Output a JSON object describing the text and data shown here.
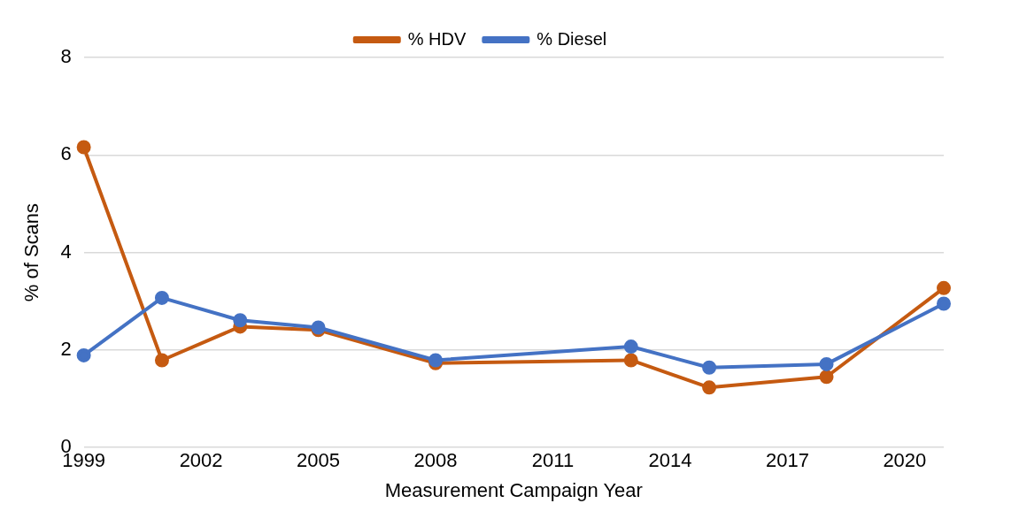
{
  "chart_data": {
    "type": "line",
    "xlabel": "Measurement Campaign Year",
    "ylabel": "% of Scans",
    "x": [
      1999,
      2001,
      2003,
      2005,
      2008,
      2013,
      2015,
      2018,
      2021
    ],
    "series": [
      {
        "name": "% HDV",
        "color": "#c55a11",
        "values": [
          6.16,
          1.79,
          2.48,
          2.41,
          1.73,
          1.79,
          1.23,
          1.45,
          3.27
        ]
      },
      {
        "name": "% Diesel",
        "color": "#4472c4",
        "values": [
          1.89,
          3.07,
          2.61,
          2.46,
          1.79,
          2.07,
          1.64,
          1.71,
          2.95
        ]
      }
    ],
    "xlim": [
      1999,
      2021
    ],
    "xticks": [
      1999,
      2002,
      2005,
      2008,
      2011,
      2014,
      2017,
      2020
    ],
    "ylim": [
      0,
      8
    ],
    "yticks": [
      0,
      2,
      4,
      6,
      8
    ],
    "grid": "y",
    "legend": "top",
    "marker": "circle",
    "line_style": "solid"
  }
}
